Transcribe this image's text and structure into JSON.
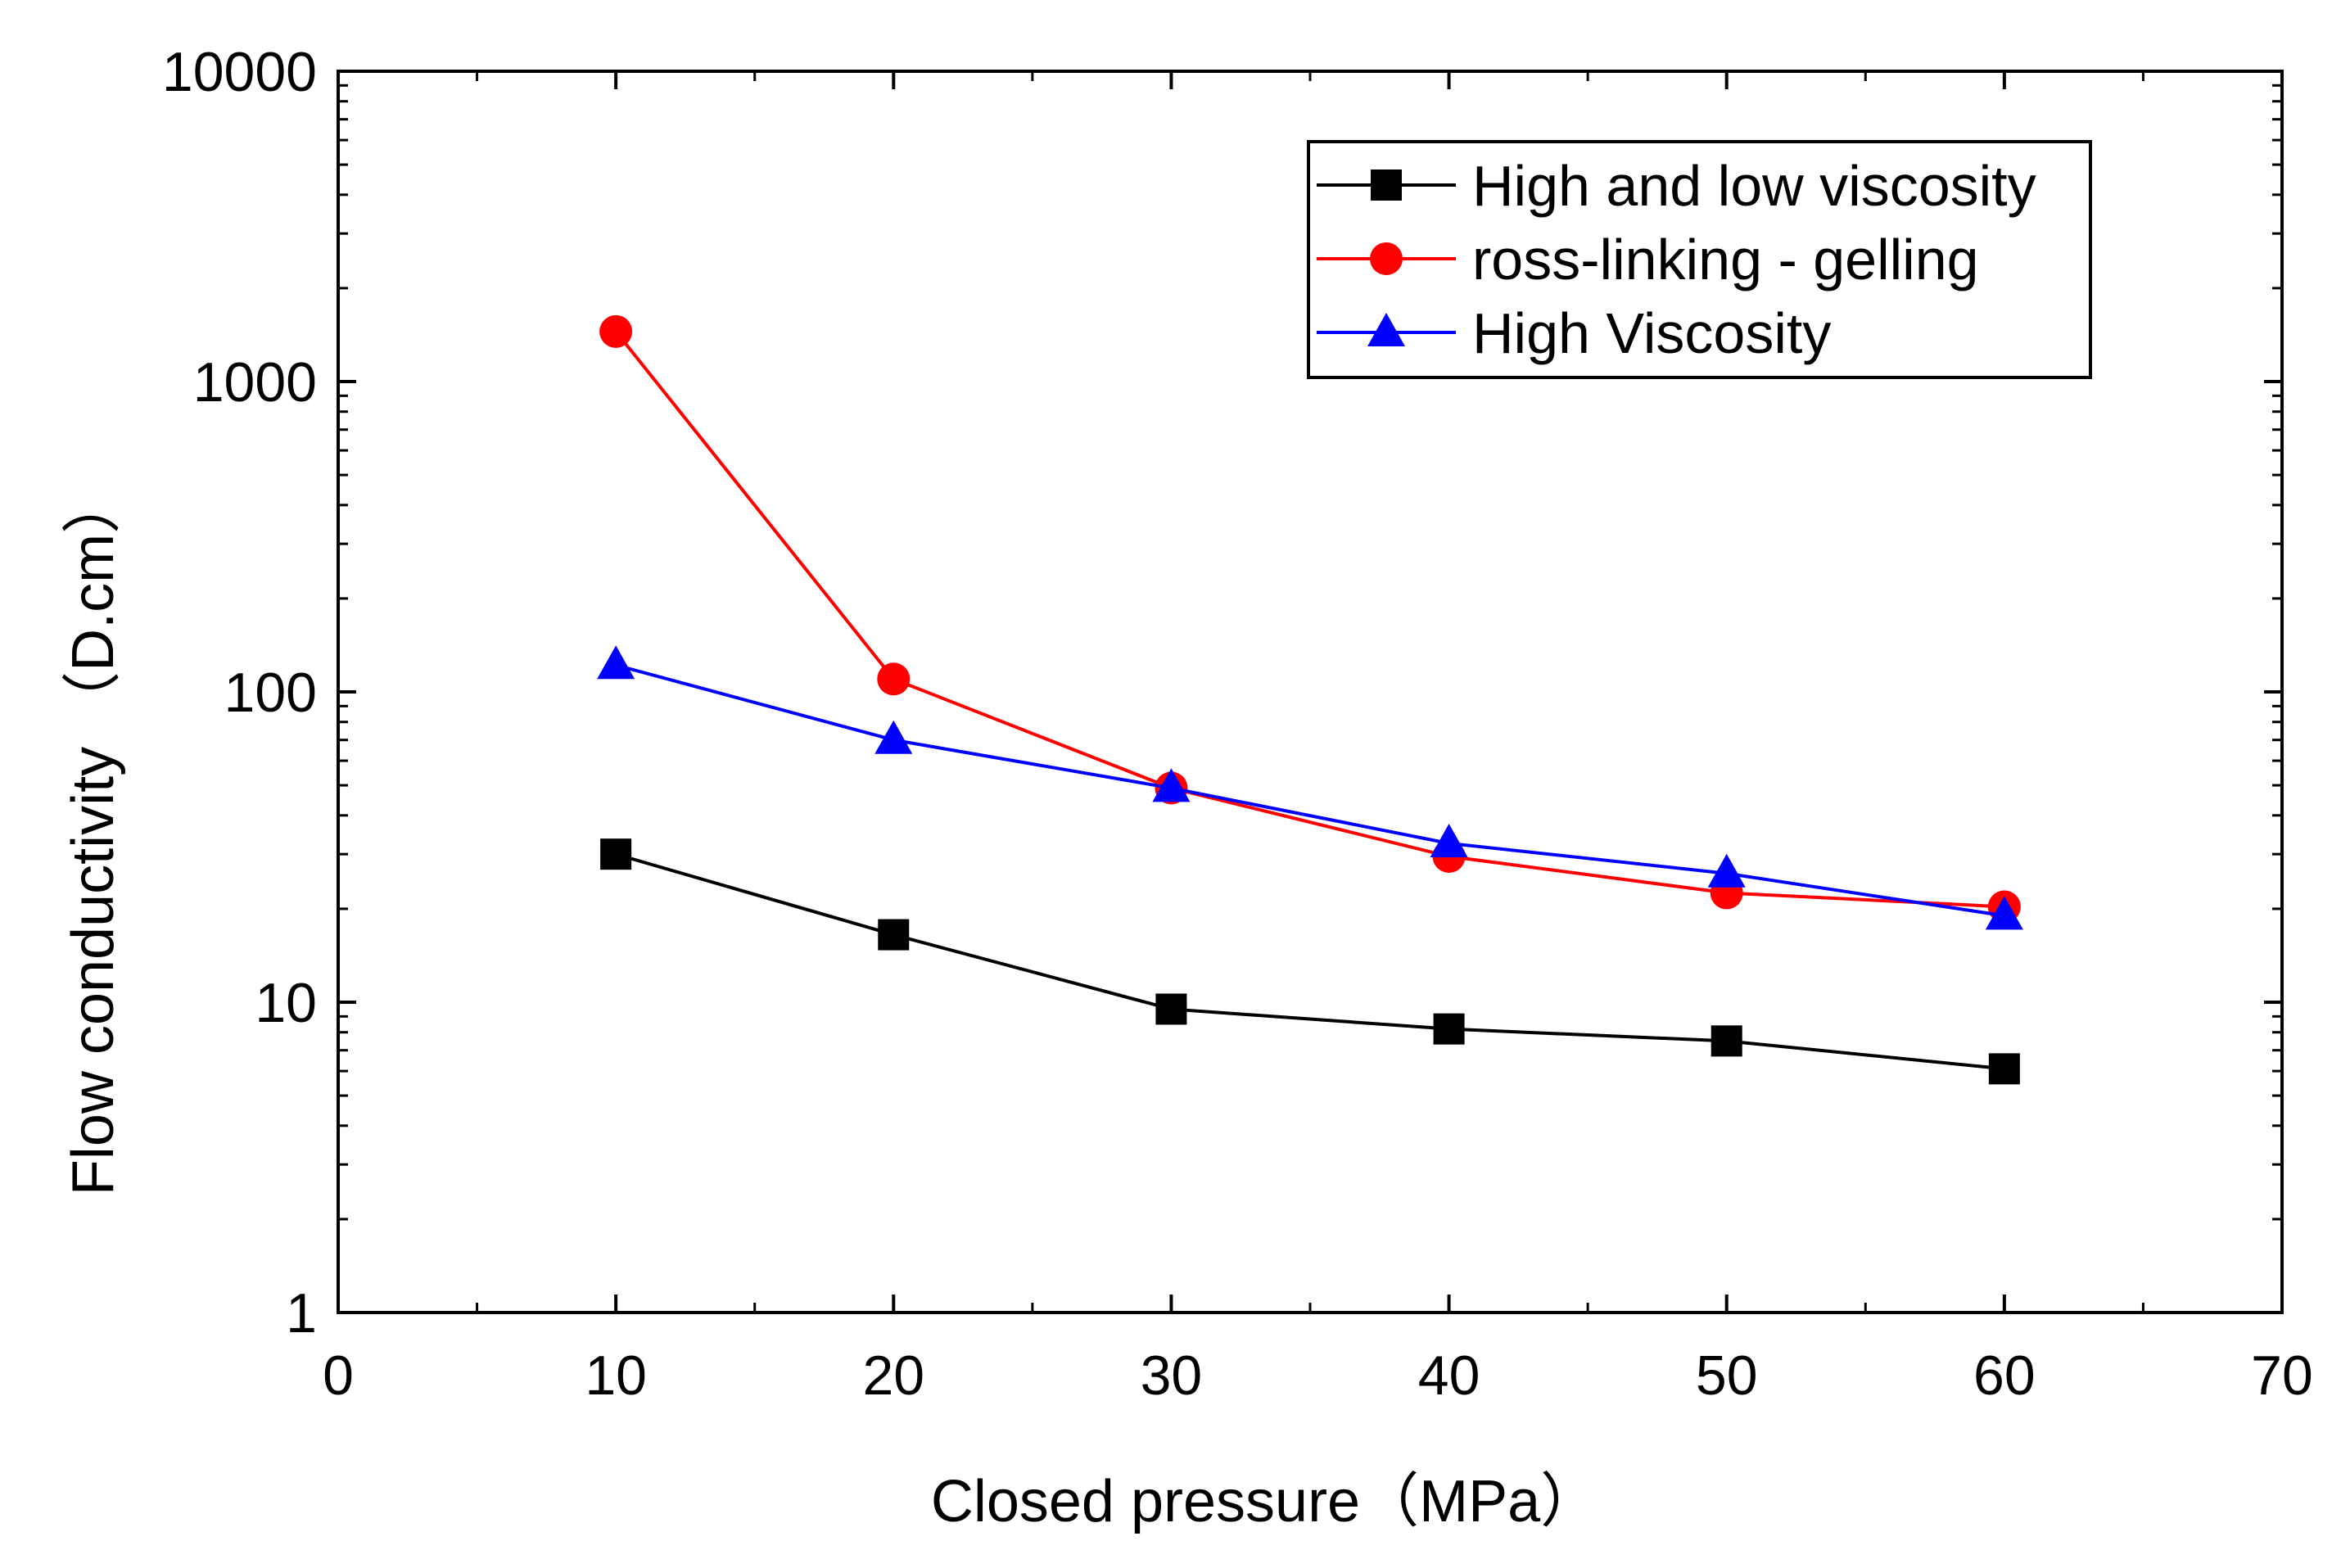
{
  "chart_data": {
    "type": "line",
    "title": "",
    "xlabel": "Closed pressure（MPa）",
    "ylabel": "Flow conductivity （D.cm）",
    "xlim": [
      0,
      70
    ],
    "ylim": [
      1,
      10000
    ],
    "yscale": "log",
    "x_ticks": [
      0,
      10,
      20,
      30,
      40,
      50,
      60,
      70
    ],
    "y_ticks": [
      1,
      10,
      100,
      1000,
      10000
    ],
    "grid": false,
    "legend_position": "top-right",
    "x": [
      10,
      20,
      30,
      40,
      50,
      60
    ],
    "series": [
      {
        "name": "High and low viscosity",
        "color": "#000000",
        "marker": "square",
        "values": [
          30,
          16.5,
          9.5,
          8.2,
          7.5,
          6.1
        ]
      },
      {
        "name": "ross-linking - gelling",
        "color": "#ff0000",
        "marker": "circle",
        "values": [
          1450,
          110,
          49,
          29.5,
          22.5,
          20.3
        ]
      },
      {
        "name": "High Viscosity",
        "color": "#0000ff",
        "marker": "triangle",
        "values": [
          122,
          70,
          49,
          32.5,
          26,
          19
        ]
      }
    ]
  }
}
